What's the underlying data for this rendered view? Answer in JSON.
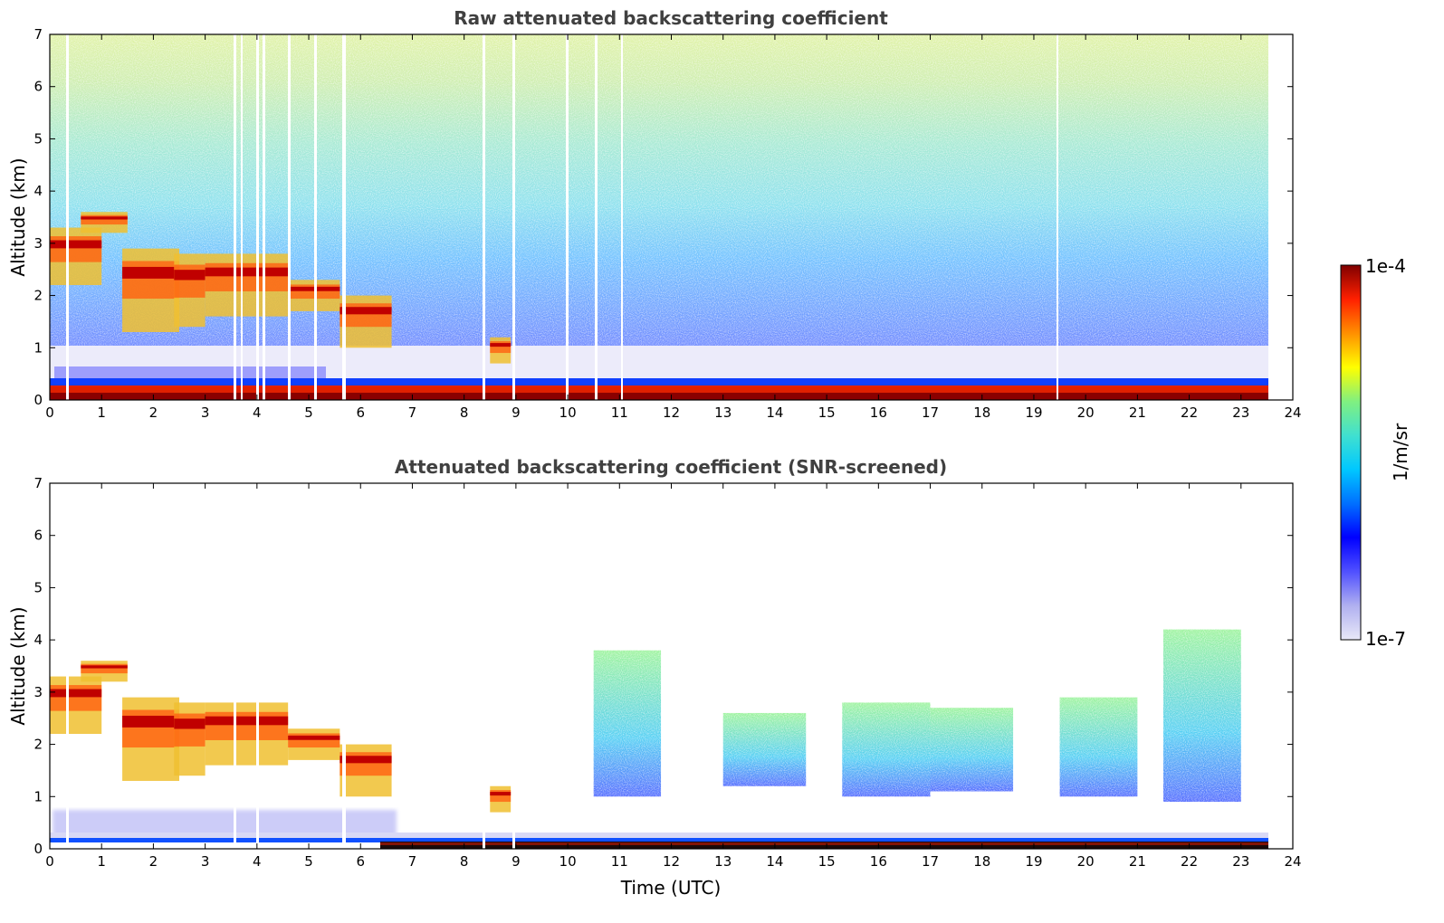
{
  "chart_data": [
    {
      "type": "heatmap",
      "title": "Raw attenuated backscattering coefficient",
      "xlabel": "",
      "ylabel": "Altitude (km)",
      "xlim": [
        0,
        24
      ],
      "ylim": [
        0,
        7
      ],
      "xticks": [
        "0",
        "1",
        "2",
        "3",
        "4",
        "5",
        "6",
        "7",
        "8",
        "9",
        "10",
        "11",
        "12",
        "13",
        "14",
        "15",
        "16",
        "17",
        "18",
        "19",
        "20",
        "21",
        "22",
        "23",
        "24"
      ],
      "yticks": [
        "0",
        "1",
        "2",
        "3",
        "4",
        "5",
        "6",
        "7"
      ],
      "data_end_time": 23.55,
      "cloud_layers": [
        {
          "t_start": 0.0,
          "t_end": 1.0,
          "base_km": 2.2,
          "top_km": 3.3
        },
        {
          "t_start": 0.6,
          "t_end": 1.5,
          "base_km": 3.2,
          "top_km": 3.6
        },
        {
          "t_start": 1.4,
          "t_end": 2.5,
          "base_km": 1.3,
          "top_km": 2.9
        },
        {
          "t_start": 2.4,
          "t_end": 3.0,
          "base_km": 1.4,
          "top_km": 2.8
        },
        {
          "t_start": 3.0,
          "t_end": 4.6,
          "base_km": 1.6,
          "top_km": 2.8
        },
        {
          "t_start": 4.6,
          "t_end": 5.6,
          "base_km": 1.7,
          "top_km": 2.3
        },
        {
          "t_start": 5.6,
          "t_end": 6.6,
          "base_km": 1.0,
          "top_km": 2.0
        },
        {
          "t_start": 8.5,
          "t_end": 8.9,
          "base_km": 0.7,
          "top_km": 1.2
        }
      ],
      "boundary_layer_top_km": 0.3
    },
    {
      "type": "heatmap",
      "title": "Attenuated backscattering coefficient (SNR-screened)",
      "xlabel": "Time (UTC)",
      "ylabel": "Altitude (km)",
      "xlim": [
        0,
        24
      ],
      "ylim": [
        0,
        7
      ],
      "xticks": [
        "0",
        "1",
        "2",
        "3",
        "4",
        "5",
        "6",
        "7",
        "8",
        "9",
        "10",
        "11",
        "12",
        "13",
        "14",
        "15",
        "16",
        "17",
        "18",
        "19",
        "20",
        "21",
        "22",
        "23",
        "24"
      ],
      "yticks": [
        "0",
        "1",
        "2",
        "3",
        "4",
        "5",
        "6",
        "7"
      ],
      "data_end_time": 23.55,
      "aerosol_patches": [
        {
          "t_start": 10.5,
          "t_end": 11.8,
          "base_km": 1.0,
          "top_km": 3.8
        },
        {
          "t_start": 13.0,
          "t_end": 14.6,
          "base_km": 1.2,
          "top_km": 2.6
        },
        {
          "t_start": 15.3,
          "t_end": 17.0,
          "base_km": 1.0,
          "top_km": 2.8
        },
        {
          "t_start": 17.0,
          "t_end": 18.6,
          "base_km": 1.1,
          "top_km": 2.7
        },
        {
          "t_start": 19.5,
          "t_end": 21.0,
          "base_km": 1.0,
          "top_km": 2.9
        },
        {
          "t_start": 21.5,
          "t_end": 23.0,
          "base_km": 0.9,
          "top_km": 4.2
        }
      ]
    }
  ],
  "colorbar": {
    "label": "1/m/sr",
    "max_label": "1e-4",
    "min_label": "1e-7",
    "min": 1e-07,
    "max": 0.0001,
    "colors": [
      "#e8e8f8",
      "#b0b0f0",
      "#5050ff",
      "#0000ff",
      "#0070ff",
      "#00c8ff",
      "#40e0d0",
      "#80f080",
      "#ffff00",
      "#ff9000",
      "#ff2000",
      "#800000"
    ]
  }
}
